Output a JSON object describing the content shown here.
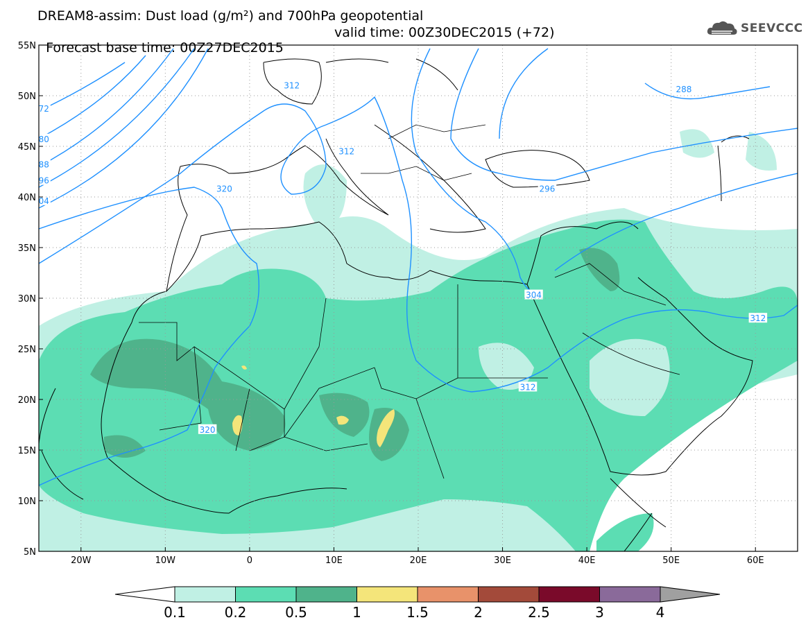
{
  "title": {
    "line1": "DREAM8-assim: Dust load (g/m²) and 700hPa geopotential",
    "line2_base": "Forecast base time: 00Z27DEC2015",
    "line2_valid": "valid time: 00Z30DEC2015 (+72)"
  },
  "logo": {
    "text": "SEEVCCC",
    "icon": "cloud-icon"
  },
  "map": {
    "lon_range": [
      -25,
      65
    ],
    "lat_range": [
      5,
      55
    ],
    "lon_ticks": [
      {
        "value": -20,
        "label": "20W"
      },
      {
        "value": -10,
        "label": "10W"
      },
      {
        "value": 0,
        "label": "0"
      },
      {
        "value": 10,
        "label": "10E"
      },
      {
        "value": 20,
        "label": "20E"
      },
      {
        "value": 30,
        "label": "30E"
      },
      {
        "value": 40,
        "label": "40E"
      },
      {
        "value": 50,
        "label": "50E"
      },
      {
        "value": 60,
        "label": "60E"
      }
    ],
    "lat_ticks": [
      {
        "value": 55,
        "label": "55N"
      },
      {
        "value": 50,
        "label": "50N"
      },
      {
        "value": 45,
        "label": "45N"
      },
      {
        "value": 40,
        "label": "40N"
      },
      {
        "value": 35,
        "label": "35N"
      },
      {
        "value": 30,
        "label": "30N"
      },
      {
        "value": 25,
        "label": "25N"
      },
      {
        "value": 20,
        "label": "20N"
      },
      {
        "value": 15,
        "label": "15N"
      },
      {
        "value": 10,
        "label": "10N"
      },
      {
        "value": 5,
        "label": "5N"
      }
    ],
    "contour_labels": [
      {
        "label": "312",
        "lon": 5,
        "lat": 51
      },
      {
        "label": "312",
        "lon": 11.5,
        "lat": 44.5
      },
      {
        "label": "320",
        "lon": -3,
        "lat": 40.8
      },
      {
        "label": "320",
        "lon": -5,
        "lat": 17
      },
      {
        "label": "304",
        "lon": 33.7,
        "lat": 30.3
      },
      {
        "label": "312",
        "lon": 33,
        "lat": 21.2
      },
      {
        "label": "312",
        "lon": 60.3,
        "lat": 28
      },
      {
        "label": "296",
        "lon": 35.3,
        "lat": 40.8
      },
      {
        "label": "288",
        "lon": 51.5,
        "lat": 50.6
      },
      {
        "label": "72",
        "lon": -24.4,
        "lat": 48.7
      },
      {
        "label": "80",
        "lon": -24.4,
        "lat": 45.7
      },
      {
        "label": "88",
        "lon": -24.4,
        "lat": 43.2
      },
      {
        "label": "96",
        "lon": -24.4,
        "lat": 41.6
      },
      {
        "label": "04",
        "lon": -24.4,
        "lat": 39.6
      }
    ]
  },
  "colorbar": {
    "levels": [
      "0.1",
      "0.2",
      "0.5",
      "1",
      "1.5",
      "2",
      "2.5",
      "3",
      "4"
    ],
    "colors": [
      "#c0f0e4",
      "#5cddb3",
      "#4fb38b",
      "#f4e57a",
      "#e8926a",
      "#a34a3a",
      "#7a0a2a",
      "#8a6a9a"
    ],
    "low_color": "#ffffff",
    "high_color": "#a0a0a0"
  },
  "colors": {
    "contour": "#1e90ff",
    "coast": "#000000"
  }
}
